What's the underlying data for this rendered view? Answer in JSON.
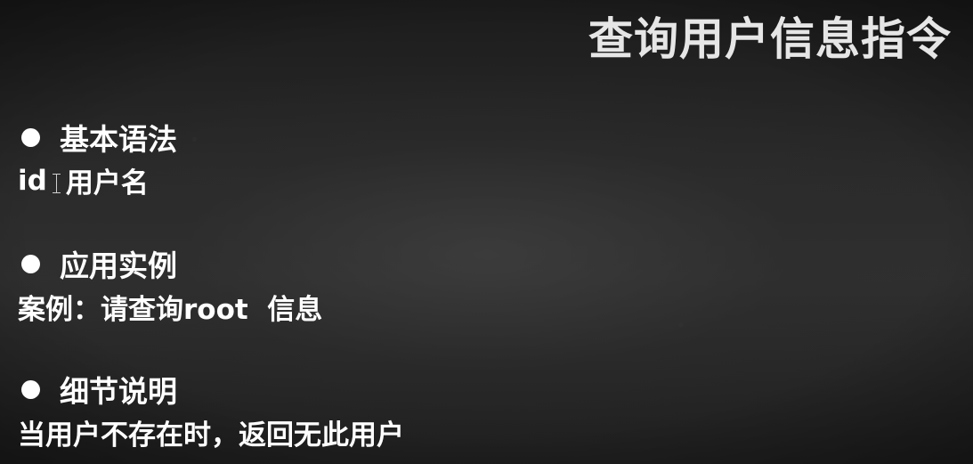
{
  "title": "查询用户信息指令",
  "sections": [
    {
      "heading": "基本语法",
      "content_prefix": "id",
      "content": "用户名"
    },
    {
      "heading": "应用实例",
      "content": "案例：请查询root  信息"
    },
    {
      "heading": "细节说明",
      "content": "当用户不存在时，返回无此用户"
    }
  ]
}
